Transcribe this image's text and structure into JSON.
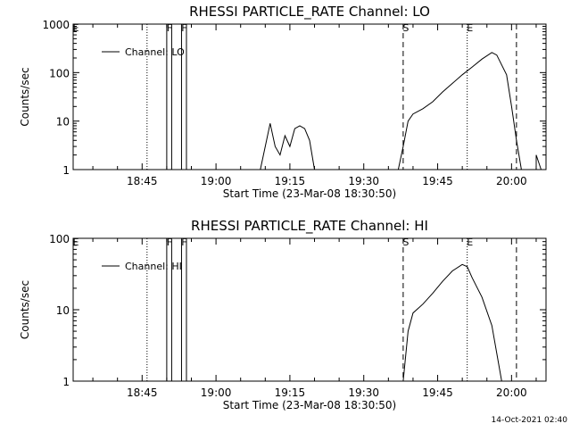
{
  "footer_timestamp": "14-Oct-2021 02:40",
  "chart_data": [
    {
      "type": "line",
      "title": "RHESSI PARTICLE_RATE Channel: LO",
      "xlabel": "Start Time (23-Mar-08 18:30:50)",
      "ylabel": "Counts/sec",
      "y_scale": "log",
      "ylim": [
        1,
        1000
      ],
      "y_ticks": [
        {
          "v": 1,
          "label": "1"
        },
        {
          "v": 10,
          "label": "10"
        },
        {
          "v": 100,
          "label": "100"
        },
        {
          "v": 1000,
          "label": "1000"
        }
      ],
      "xlim": [
        "18:31",
        "20:07"
      ],
      "x_ticks": [
        "18:45",
        "19:00",
        "19:15",
        "19:30",
        "19:45",
        "20:00"
      ],
      "legend": {
        "label": "Channel: LO",
        "position": "top-left"
      },
      "markers": [
        {
          "label": "E",
          "time": "18:31",
          "style": "solid"
        },
        {
          "label": "",
          "time": "18:46",
          "style": "dotted"
        },
        {
          "label": "F",
          "time": "18:50",
          "style": "solid"
        },
        {
          "label": "",
          "time": "18:51",
          "style": "solid"
        },
        {
          "label": "F",
          "time": "18:53",
          "style": "solid"
        },
        {
          "label": "",
          "time": "18:54",
          "style": "solid"
        },
        {
          "label": "S",
          "time": "19:38",
          "style": "dashed"
        },
        {
          "label": "E",
          "time": "19:51",
          "style": "dotted"
        },
        {
          "label": "",
          "time": "20:01",
          "style": "dashed"
        },
        {
          "label": "",
          "time": "20:07",
          "style": "dotted"
        }
      ],
      "series": [
        {
          "segments": [
            [
              [
                "19:09",
                1
              ],
              [
                "19:10",
                3
              ],
              [
                "19:11",
                9
              ],
              [
                "19:12",
                3
              ],
              [
                "19:13",
                2
              ],
              [
                "19:14",
                5
              ],
              [
                "19:15",
                3
              ],
              [
                "19:16",
                7
              ],
              [
                "19:17",
                8
              ],
              [
                "19:18",
                7
              ],
              [
                "19:19",
                4
              ],
              [
                "19:20",
                1
              ]
            ],
            [
              [
                "19:37",
                1
              ],
              [
                "19:38",
                3
              ],
              [
                "19:39",
                10
              ],
              [
                "19:40",
                14
              ],
              [
                "19:42",
                18
              ],
              [
                "19:44",
                25
              ],
              [
                "19:46",
                40
              ],
              [
                "19:48",
                60
              ],
              [
                "19:50",
                90
              ],
              [
                "19:52",
                130
              ],
              [
                "19:54",
                190
              ],
              [
                "19:56",
                260
              ],
              [
                "19:57",
                230
              ],
              [
                "19:59",
                90
              ],
              [
                "20:00",
                20
              ],
              [
                "20:01",
                4
              ],
              [
                "20:02",
                1
              ]
            ],
            [
              [
                "20:05",
                1
              ],
              [
                "20:05",
                2
              ],
              [
                "20:06",
                1
              ]
            ]
          ]
        }
      ]
    },
    {
      "type": "line",
      "title": "RHESSI PARTICLE_RATE Channel: HI",
      "xlabel": "Start Time (23-Mar-08 18:30:50)",
      "ylabel": "Counts/sec",
      "y_scale": "log",
      "ylim": [
        1,
        100
      ],
      "y_ticks": [
        {
          "v": 1,
          "label": "1"
        },
        {
          "v": 10,
          "label": "10"
        },
        {
          "v": 100,
          "label": "100"
        }
      ],
      "xlim": [
        "18:31",
        "20:07"
      ],
      "x_ticks": [
        "18:45",
        "19:00",
        "19:15",
        "19:30",
        "19:45",
        "20:00"
      ],
      "legend": {
        "label": "Channel: HI",
        "position": "top-left"
      },
      "markers": [
        {
          "label": "E",
          "time": "18:31",
          "style": "solid"
        },
        {
          "label": "",
          "time": "18:46",
          "style": "dotted"
        },
        {
          "label": "F",
          "time": "18:50",
          "style": "solid"
        },
        {
          "label": "",
          "time": "18:51",
          "style": "solid"
        },
        {
          "label": "F",
          "time": "18:53",
          "style": "solid"
        },
        {
          "label": "",
          "time": "18:54",
          "style": "solid"
        },
        {
          "label": "S",
          "time": "19:38",
          "style": "dashed"
        },
        {
          "label": "E",
          "time": "19:51",
          "style": "dotted"
        },
        {
          "label": "",
          "time": "20:01",
          "style": "dashed"
        },
        {
          "label": "",
          "time": "20:07",
          "style": "dotted"
        }
      ],
      "series": [
        {
          "segments": [
            [
              [
                "19:38",
                1
              ],
              [
                "19:39",
                5
              ],
              [
                "19:40",
                9
              ],
              [
                "19:42",
                12
              ],
              [
                "19:44",
                17
              ],
              [
                "19:46",
                25
              ],
              [
                "19:48",
                35
              ],
              [
                "19:50",
                43
              ],
              [
                "19:51",
                40
              ],
              [
                "19:52",
                28
              ],
              [
                "19:54",
                15
              ],
              [
                "19:56",
                6
              ],
              [
                "19:58",
                1
              ]
            ]
          ]
        }
      ]
    }
  ]
}
